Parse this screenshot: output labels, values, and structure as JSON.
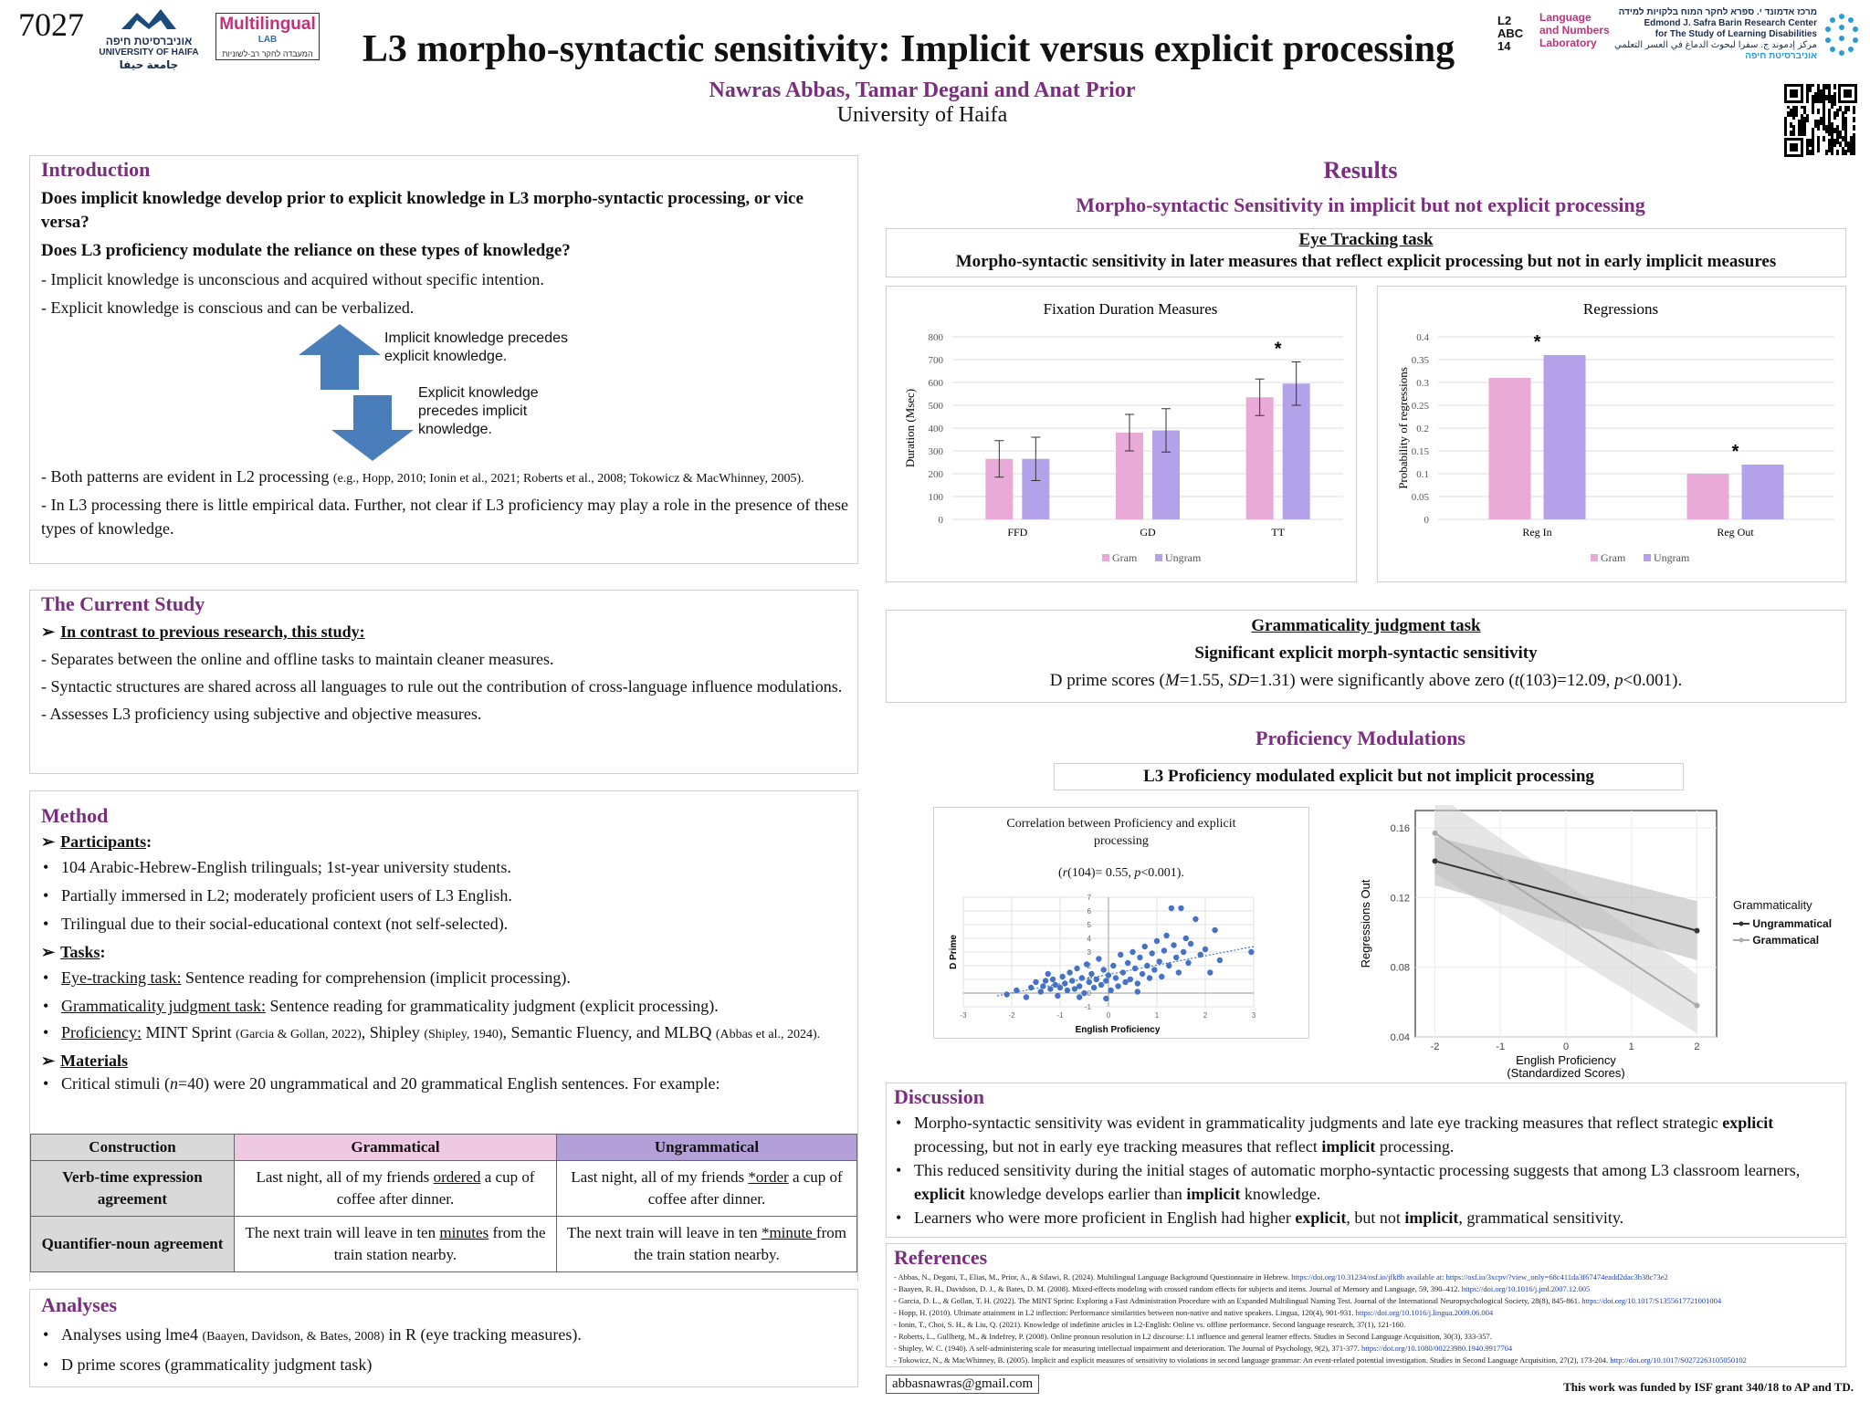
{
  "header": {
    "poster_number": "7027",
    "title": "L3 morpho-syntactic sensitivity: Implicit versus explicit processing",
    "authors": "Nawras Abbas, Tamar Degani and Anat Prior",
    "affiliation": "University of Haifa",
    "logo_haifa_he": "אוניברסיטת חיפה",
    "logo_haifa_en": "UNIVERSITY OF HAIFA",
    "logo_haifa_ar": "جامعة حيفا",
    "logo_multilingual": "Multilingual",
    "logo_multilingual_sub": "LAB",
    "logo_multilingual_he": "המעבדה לחקר רב-לשוניות",
    "logo_lnl_letters": "L2 ABC 14",
    "logo_lnl_text": [
      "Language",
      "and Numbers",
      "Laboratory"
    ],
    "logo_safra_he": "מרכז אדמונד י. ספרא לחקר המוח בלקויות למידה",
    "logo_safra_en": [
      "Edmond J. Safra Barin Research Center",
      "for The Study of Learning Disabilities"
    ],
    "logo_safra_ar": "مركز إدموند ج. سفرا لبحوث الدماغ في العسر التعلمي",
    "logo_safra_he2": "אוניברסיטת חיפה"
  },
  "introduction": {
    "title": "Introduction",
    "q1": "Does implicit knowledge develop prior to explicit knowledge in L3 morpho-syntactic processing, or vice versa?",
    "q2": "Does L3 proficiency modulate the reliance on these types of knowledge?",
    "p1": "- Implicit knowledge is unconscious and acquired without specific intention.",
    "p2": "- Explicit knowledge is conscious and can be verbalized.",
    "arrow_up": "Implicit knowledge precedes explicit knowledge.",
    "arrow_down": "Explicit knowledge precedes implicit knowledge.",
    "p3_main": "- Both patterns are evident in L2 processing",
    "p3_cite": "(e.g., Hopp, 2010; Ionin et al., 2021; Roberts et al., 2008; Tokowicz & MacWhinney, 2005).",
    "p4": "- In L3 processing there is little empirical data. Further, not clear if L3 proficiency may play a role in the presence of these types of knowledge."
  },
  "current_study": {
    "title": "The Current Study",
    "lead": "In contrast to previous research, this study:",
    "p1": "- Separates between the online and offline tasks to maintain cleaner measures.",
    "p2": "- Syntactic structures are shared across all languages to rule out the contribution of cross-language influence modulations.",
    "p3": "- Assesses L3 proficiency using subjective and objective measures."
  },
  "method": {
    "title": "Method",
    "participants_label": "Participants",
    "participants": [
      "104 Arabic-Hebrew-English trilinguals; 1st-year university students.",
      "Partially immersed in L2; moderately proficient users of L3 English.",
      "Trilingual due to their social-educational context (not self-selected)."
    ],
    "tasks_label": "Tasks",
    "task1_label": "Eye-tracking task:",
    "task1": " Sentence reading for comprehension (implicit processing).",
    "task2_label": "Grammaticality judgment task:",
    "task2": " Sentence reading for grammaticality judgment (explicit processing).",
    "task3_label": "Proficiency:",
    "task3_a": " MINT Sprint ",
    "task3_a_cite": "(Garcia & Gollan, 2022)",
    "task3_b": ", Shipley ",
    "task3_b_cite": "(Shipley, 1940)",
    "task3_c": ", Semantic Fluency, and MLBQ ",
    "task3_c_cite": "(Abbas et al., 2024).",
    "materials_label": "Materials",
    "materials_a": "Critical stimuli (",
    "materials_n": "n",
    "materials_b": "=40) were 20 ungrammatical and 20 grammatical English sentences. For example:",
    "table": {
      "headers": [
        "Construction",
        "Grammatical",
        "Ungrammatical"
      ],
      "rows": [
        {
          "construction": "Verb-time expression agreement",
          "g_pre": "Last night, all of my friends ",
          "g_key": "ordered",
          "g_post": " a cup of coffee after dinner.",
          "u_pre": "Last night, all of my friends ",
          "u_key": "*order",
          "u_post": " a cup of coffee after dinner."
        },
        {
          "construction": "Quantifier-noun agreement",
          "g_pre": "The next train will leave in ten ",
          "g_key": "minutes",
          "g_post": " from the train station nearby.",
          "u_pre": "The next train will leave in ten ",
          "u_key": "*minute ",
          "u_post": "from the train station nearby."
        }
      ]
    }
  },
  "analyses": {
    "title": "Analyses",
    "a1_pre": "Analyses using lme4 ",
    "a1_cite": "(Baayen, Davidson, & Bates, 2008)",
    "a1_post": " in R (eye tracking measures).",
    "a2": "D prime scores (grammaticality judgment task)"
  },
  "email": "abbasnawras@gmail.com",
  "funding": "This work was funded by ISF grant 340/18 to AP and TD.",
  "results": {
    "title": "Results",
    "subtitle": "Morpho-syntactic Sensitivity in implicit but not explicit processing",
    "eye_title": "Eye Tracking task",
    "eye_subtitle": "Morpho-syntactic sensitivity in later measures that reflect explicit processing but not in early implicit measures",
    "gj_title": "Grammaticality judgment task",
    "gj_subtitle": "Significant explicit morph-syntactic sensitivity",
    "gj_text_a": "D prime scores (",
    "gj_M": "M",
    "gj_text_b": "=1.55, ",
    "gj_SD": "SD",
    "gj_text_c": "=1.31) were significantly above zero (",
    "gj_t": "t",
    "gj_text_d": "(103)=12.09, ",
    "gj_p": "p",
    "gj_text_e": "<0.001).",
    "prof_title": "Proficiency Modulations",
    "prof_subtitle": "L3 Proficiency modulated explicit but not implicit processing"
  },
  "colors": {
    "gram": "#eaaad8",
    "ungram": "#b3a2ea",
    "purple": "#7b2d7f",
    "scatter": "#4472c4"
  },
  "chart_data": [
    {
      "type": "bar",
      "title": "Fixation Duration Measures",
      "ylabel": "Duration (Msec)",
      "xlabel": "",
      "categories": [
        "FFD",
        "GD",
        "TT"
      ],
      "series": [
        {
          "name": "Gram",
          "values": [
            265,
            380,
            535
          ],
          "error": [
            80,
            80,
            80
          ]
        },
        {
          "name": "Ungram",
          "values": [
            265,
            390,
            595
          ],
          "error": [
            95,
            95,
            95
          ]
        }
      ],
      "ylim": [
        0,
        800
      ],
      "yticks": [
        "0",
        "100",
        "200",
        "300",
        "400",
        "500",
        "600",
        "700",
        "800"
      ],
      "significance": {
        "TT": "*"
      },
      "legend": "bottom",
      "grid": true
    },
    {
      "type": "bar",
      "title": "Regressions",
      "ylabel": "Probability of regressions",
      "xlabel": "",
      "categories": [
        "Reg In",
        "Reg Out"
      ],
      "series": [
        {
          "name": "Gram",
          "values": [
            0.31,
            0.1
          ]
        },
        {
          "name": "Ungram",
          "values": [
            0.36,
            0.12
          ]
        }
      ],
      "ylim": [
        0,
        0.4
      ],
      "yticks": [
        "0",
        "0.05",
        "0.1",
        "0.15",
        "0.2",
        "0.25",
        "0.3",
        "0.35",
        "0.4"
      ],
      "significance": {
        "Reg In": "*",
        "Reg Out": "*"
      },
      "legend": "bottom",
      "grid": true
    },
    {
      "type": "scatter",
      "title": "Correlation between Proficiency and explicit processing",
      "subtitle_a": "(",
      "subtitle_r": "r",
      "subtitle_b": "(104)= 0.55, ",
      "subtitle_p": "p",
      "subtitle_c": "<0.001).",
      "xlabel": "English Proficiency",
      "ylabel": "D Prime",
      "xlim": [
        -3,
        3
      ],
      "ylim": [
        -1,
        7
      ],
      "xticks": [
        "-3",
        "-2",
        "-1",
        "0",
        "1",
        "2",
        "3"
      ],
      "yticks": [
        "-1",
        "0",
        "1",
        "2",
        "3",
        "4",
        "5",
        "6",
        "7"
      ],
      "points": [
        [
          -2.1,
          -0.1
        ],
        [
          -1.9,
          0.2
        ],
        [
          -1.7,
          -0.3
        ],
        [
          -1.6,
          0.4
        ],
        [
          -1.5,
          0.8
        ],
        [
          -1.4,
          0.1
        ],
        [
          -1.35,
          0.5
        ],
        [
          -1.3,
          0.9
        ],
        [
          -1.2,
          0.3
        ],
        [
          -1.15,
          1.0
        ],
        [
          -1.1,
          0.6
        ],
        [
          -1.05,
          -0.2
        ],
        [
          -1.0,
          0.4
        ],
        [
          -0.95,
          1.2
        ],
        [
          -0.9,
          0.7
        ],
        [
          -0.85,
          0.2
        ],
        [
          -0.8,
          1.5
        ],
        [
          -0.75,
          0.9
        ],
        [
          -0.7,
          0.3
        ],
        [
          -0.65,
          1.8
        ],
        [
          -0.6,
          0.5
        ],
        [
          -0.55,
          1.1
        ],
        [
          -0.5,
          0.0
        ],
        [
          -0.45,
          2.1
        ],
        [
          -0.4,
          0.8
        ],
        [
          -0.35,
          1.4
        ],
        [
          -0.3,
          0.4
        ],
        [
          -0.25,
          1.0
        ],
        [
          -0.2,
          2.5
        ],
        [
          -0.15,
          0.6
        ],
        [
          -0.1,
          1.7
        ],
        [
          -0.05,
          0.9
        ],
        [
          0.0,
          1.3
        ],
        [
          0.05,
          0.2
        ],
        [
          0.1,
          2.0
        ],
        [
          0.15,
          1.1
        ],
        [
          0.2,
          0.5
        ],
        [
          0.25,
          2.8
        ],
        [
          0.3,
          1.5
        ],
        [
          0.35,
          0.8
        ],
        [
          0.4,
          2.2
        ],
        [
          0.45,
          1.0
        ],
        [
          0.5,
          3.0
        ],
        [
          0.55,
          1.8
        ],
        [
          0.6,
          0.7
        ],
        [
          0.65,
          2.6
        ],
        [
          0.7,
          1.4
        ],
        [
          0.75,
          3.4
        ],
        [
          0.8,
          2.0
        ],
        [
          0.85,
          1.1
        ],
        [
          0.9,
          2.9
        ],
        [
          0.95,
          1.7
        ],
        [
          1.0,
          3.8
        ],
        [
          1.05,
          2.3
        ],
        [
          1.1,
          1.2
        ],
        [
          1.15,
          3.1
        ],
        [
          1.2,
          4.2
        ],
        [
          1.25,
          2.0
        ],
        [
          1.3,
          6.2
        ],
        [
          1.35,
          3.5
        ],
        [
          1.4,
          2.6
        ],
        [
          1.45,
          1.5
        ],
        [
          1.5,
          6.2
        ],
        [
          1.55,
          3.0
        ],
        [
          1.6,
          4.0
        ],
        [
          1.65,
          2.2
        ],
        [
          1.7,
          3.6
        ],
        [
          1.8,
          5.4
        ],
        [
          1.9,
          2.8
        ],
        [
          2.0,
          3.2
        ],
        [
          2.1,
          1.5
        ],
        [
          2.2,
          4.6
        ],
        [
          2.3,
          2.4
        ],
        [
          2.95,
          3.0
        ],
        [
          -0.6,
          -0.3
        ],
        [
          0.6,
          0.1
        ],
        [
          -1.25,
          1.4
        ],
        [
          -0.05,
          -0.4
        ]
      ],
      "trendline": [
        [
          -2.3,
          -0.2
        ],
        [
          3.0,
          3.4
        ]
      ],
      "grid": true
    },
    {
      "type": "line",
      "title": "",
      "xlabel": "English Proficiency",
      "xlabel2": "(Standardized Scores)",
      "ylabel": "Regressions Out",
      "xlim": [
        -2.3,
        2.3
      ],
      "ylim": [
        0.04,
        0.17
      ],
      "xticks": [
        "-2",
        "-1",
        "0",
        "1",
        "2"
      ],
      "yticks": [
        "0.04",
        "0.08",
        "0.12",
        "0.16"
      ],
      "legend_title": "Grammaticality",
      "series": [
        {
          "name": "Ungrammatical",
          "x": [
            -2,
            2
          ],
          "y": [
            0.141,
            0.101
          ],
          "band": [
            [
              0.127,
              0.155
            ],
            [
              0.084,
              0.118
            ]
          ]
        },
        {
          "name": "Grammatical",
          "x": [
            -2,
            2
          ],
          "y": [
            0.157,
            0.058
          ],
          "band": [
            [
              0.134,
              0.18
            ],
            [
              0.042,
              0.076
            ]
          ]
        }
      ],
      "legend": "right",
      "grid": true
    }
  ],
  "discussion": {
    "title": "Discussion",
    "b1_a": "Morpho-syntactic sensitivity was evident in grammaticality judgments and late eye tracking measures that reflect strategic ",
    "b1_b": "explicit",
    "b1_c": " processing, but not in early eye tracking measures that reflect ",
    "b1_d": "implicit",
    "b1_e": " processing.",
    "b2_a": "This reduced sensitivity during the initial stages of automatic morpho-syntactic processing suggests that among L3 classroom learners, ",
    "b2_b": "explicit",
    "b2_c": " knowledge develops earlier than ",
    "b2_d": "implicit",
    "b2_e": " knowledge.",
    "b3_a": "Learners who were more proficient in English had higher ",
    "b3_b": "explicit",
    "b3_c": ", but not ",
    "b3_d": "implicit",
    "b3_e": ", grammatical sensitivity."
  },
  "references": {
    "title": "References",
    "items": [
      {
        "text": "- Abbas, N., Degani, T., Elias, M., Prior, A., & Silawi, R. (2024). Multilingual Language Background Questionnaire in Hebrew. ",
        "link": "https://doi.org/10.31234/osf.io/jfk8b available at: https://osf.io/3xcpv/?view_only=68c411da3f67474eadd2dac3b38c73e2"
      },
      {
        "text": "- Baayen, R. H., Davidson, D. J., & Bates, D. M. (2008). Mixed-effects modeling with crossed random effects for subjects and items. Journal of Memory and Language, 59, 390–412. ",
        "link": "https://doi.org/10.1016/j.jml.2007.12.005"
      },
      {
        "text": "- Garcia, D. L., & Gollan, T. H. (2022). The MINT Sprint: Exploring a Fast Administration Procedure with an Expanded Multilingual Naming Test. Journal of the International Neuropsychological Society, 28(8), 845-861. ",
        "link": "https://doi.org/10.1017/S1355617721001004"
      },
      {
        "text": "- Hopp, H. (2010). Ultimate attainment in L2 inflection: Performance similarities between non-native and native speakers. Lingua, 120(4), 901-931. ",
        "link": "https://doi.org/10.1016/j.lingua.2009.06.004"
      },
      {
        "text": "- Ionin, T., Choi, S. H., & Liu, Q. (2021). Knowledge of indefinite articles in L2-English: Online vs. offline performance. Second language research, 37(1), 121-160.",
        "link": ""
      },
      {
        "text": "- Roberts, L., Gullberg, M., & Indefrey, P. (2008). Online pronoun resolution in L2 discourse: L1 influence and general learner effects. Studies in Second Language Acquisition, 30(3), 333-357.",
        "link": ""
      },
      {
        "text": "- Shipley, W. C. (1940). A self-administering scale for measuring intellectual impairment and deterioration. The Journal of Psychology, 9(2), 371-377. ",
        "link": "https://doi.org/10.1080/00223980.1940.9917704"
      },
      {
        "text": "- Tokowicz, N., & MacWhinney, B. (2005). Implicit and explicit measures of sensitivity to violations in second language grammar: An event-related potential investigation. Studies in Second Language Acquisition, 27(2), 173-204. ",
        "link": "http://doi.org/10.1017/S0272263105050102"
      }
    ]
  }
}
